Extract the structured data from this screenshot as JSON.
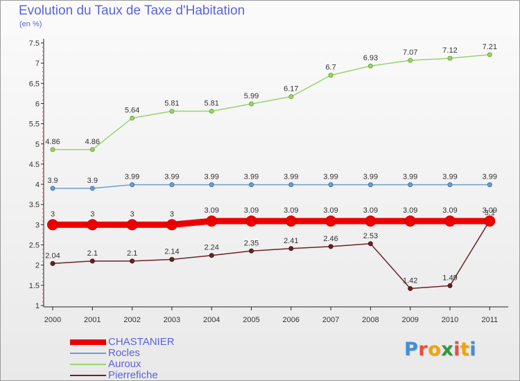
{
  "header": {
    "title": "Evolution du Taux de Taxe d'Habitation",
    "unit": "(en %)"
  },
  "brand": {
    "logo_text": "Proxiti",
    "letter_colors": [
      "#3f8fd6",
      "#e94e3b",
      "#f0a500",
      "#2f9a3a",
      "#e94e3b",
      "#f0a500",
      "#3f8fd6"
    ]
  },
  "chart_data": {
    "type": "line",
    "title": "Evolution du Taux de Taxe d'Habitation",
    "ylabel": "(en %)",
    "categories": [
      "2000",
      "2001",
      "2002",
      "2003",
      "2004",
      "2005",
      "2006",
      "2007",
      "2008",
      "2009",
      "2010",
      "2011"
    ],
    "ylim": [
      1,
      7.5
    ],
    "yticks": [
      "1",
      "1.5",
      "2",
      "2.5",
      "3",
      "3.5",
      "4",
      "4.5",
      "5",
      "5.5",
      "6",
      "6.5",
      "7",
      "7.5"
    ],
    "grid": false,
    "legend_position": "bottom-left",
    "series": [
      {
        "name": "CHASTANIER",
        "color": "#ee0000",
        "values": [
          3,
          3,
          3,
          3,
          3.09,
          3.09,
          3.09,
          3.09,
          3.09,
          3.09,
          3.09,
          3.09
        ],
        "labels": [
          "3",
          "3",
          "3",
          "3",
          "3.09",
          "3.09",
          "3.09",
          "3.09",
          "3.09",
          "3.09",
          "3.09",
          "3.09"
        ]
      },
      {
        "name": "Rocles",
        "color": "#6e9ecf",
        "values": [
          3.9,
          3.9,
          3.99,
          3.99,
          3.99,
          3.99,
          3.99,
          3.99,
          3.99,
          3.99,
          3.99,
          3.99
        ],
        "labels": [
          "3.9",
          "3.9",
          "3.99",
          "3.99",
          "3.99",
          "3.99",
          "3.99",
          "3.99",
          "3.99",
          "3.99",
          "3.99",
          "3.99"
        ]
      },
      {
        "name": "Auroux",
        "color": "#99d36b",
        "values": [
          4.86,
          4.86,
          5.64,
          5.81,
          5.81,
          5.99,
          6.17,
          6.7,
          6.93,
          7.07,
          7.12,
          7.21
        ],
        "labels": [
          "4.86",
          "4.86",
          "5.64",
          "5.81",
          "5.81",
          "5.99",
          "6.17",
          "6.7",
          "6.93",
          "7.07",
          "7.12",
          "7.21"
        ]
      },
      {
        "name": "Pierrefiche",
        "color": "#6b2227",
        "values": [
          2.04,
          2.1,
          2.1,
          2.14,
          2.24,
          2.35,
          2.41,
          2.46,
          2.53,
          1.42,
          1.49,
          3.1
        ],
        "labels": [
          "2.04",
          "2.1",
          "2.1",
          "2.14",
          "2.24",
          "2.35",
          "2.41",
          "2.46",
          "2.53",
          "1.42",
          "1.49",
          "3.1"
        ]
      }
    ]
  }
}
